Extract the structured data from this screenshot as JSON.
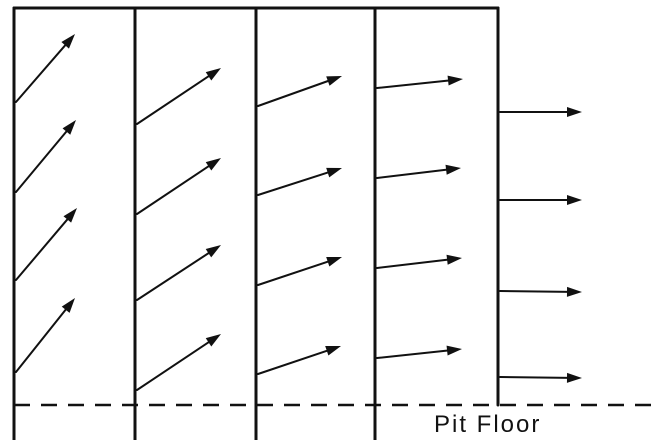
{
  "diagram": {
    "floor_label": "Pit Floor",
    "ink_color": "#111111",
    "background_color": "#ffffff",
    "wall_count": 5,
    "arrows_per_column": 4
  }
}
